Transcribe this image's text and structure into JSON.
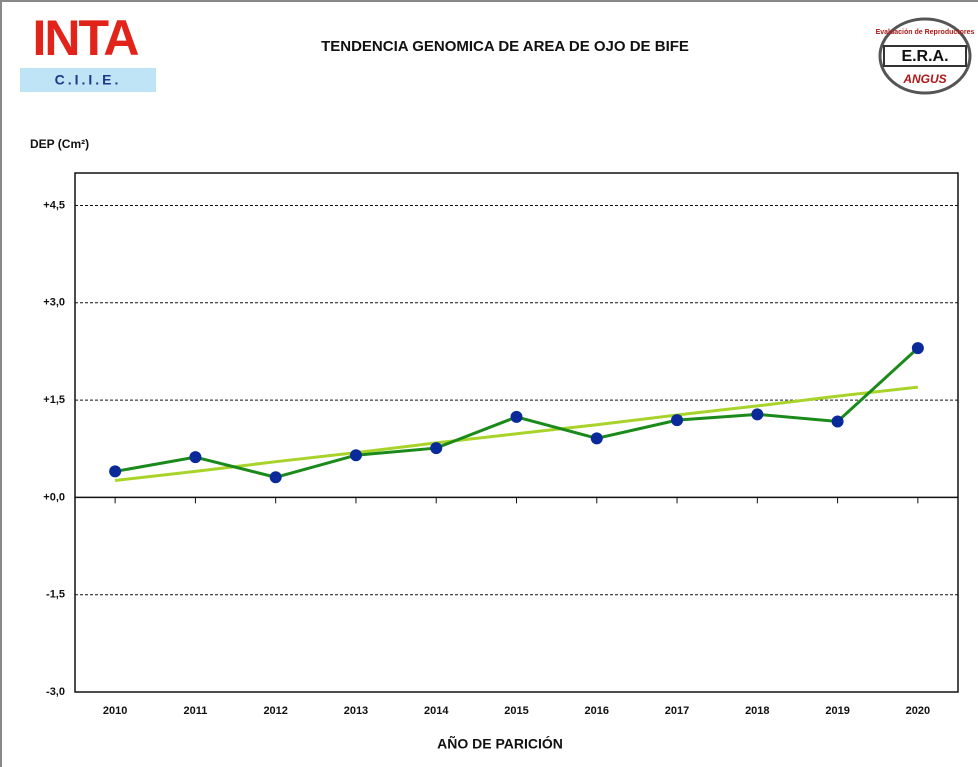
{
  "logos": {
    "left": {
      "name": "INTA",
      "sub": "C.I.I.E."
    },
    "right": {
      "top": "Evaluación de Reproductores",
      "name": "E.R.A.",
      "bottom": "ANGUS"
    }
  },
  "chart_data": {
    "type": "line",
    "title": "TENDENCIA GENOMICA DE AREA DE OJO DE BIFE",
    "y_label": "DEP (Cm²)",
    "x_label": "AÑO DE PARICIÓN",
    "categories": [
      "2010",
      "2011",
      "2012",
      "2013",
      "2014",
      "2015",
      "2016",
      "2017",
      "2018",
      "2019",
      "2020"
    ],
    "series": [
      {
        "color": "#1a8a1a",
        "marker_color": "#0a2a9a",
        "values": [
          0.4,
          0.62,
          0.31,
          0.65,
          0.76,
          1.24,
          0.91,
          1.19,
          1.28,
          1.17,
          2.3
        ]
      },
      {
        "color": "#a8d42a",
        "values": [
          0.26,
          0.4,
          0.55,
          0.69,
          0.84,
          0.98,
          1.12,
          1.27,
          1.41,
          1.56,
          1.7
        ]
      }
    ],
    "ylim": [
      -3.0,
      5.0
    ],
    "yticks": [
      {
        "value": -3.0,
        "label": "-3,0"
      },
      {
        "value": -1.5,
        "label": "-1,5"
      },
      {
        "value": 0,
        "label": "+0,0"
      },
      {
        "value": 1.5,
        "label": "+1,5"
      },
      {
        "value": 3.0,
        "label": "+3,0"
      },
      {
        "value": 4.5,
        "label": "+4,5"
      }
    ],
    "grid": true
  }
}
